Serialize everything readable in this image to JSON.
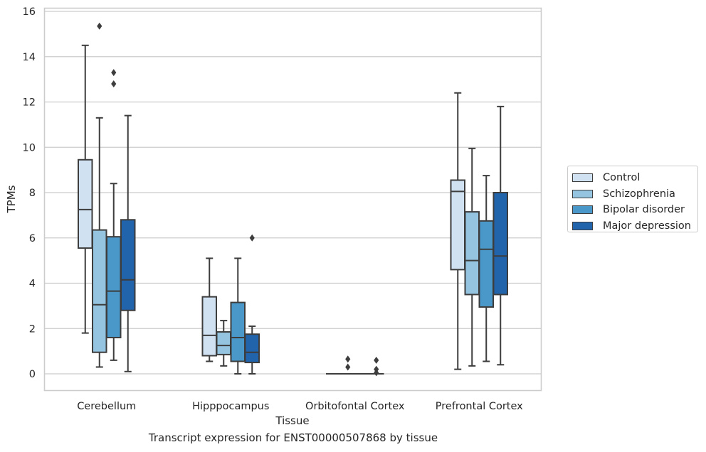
{
  "chart_data": {
    "type": "box",
    "title": "",
    "xlabel": "Tissue",
    "ylabel": "TPMs",
    "caption": "Transcript expression for ENST00000507868 by tissue",
    "ylim": [
      -0.7,
      16.2
    ],
    "yticks": [
      "0",
      "2",
      "4",
      "6",
      "8",
      "10",
      "12",
      "14",
      "16"
    ],
    "grid": "horizontal",
    "legend_position": "right",
    "categories": [
      "Cerebellum",
      "Hipppocampus",
      "Orbitofontal Cortex",
      "Prefrontal Cortex"
    ],
    "series": [
      {
        "name": "Control",
        "color": "#d0e1f2",
        "boxes": [
          {
            "whisker_low": 1.8,
            "q1": 5.55,
            "median": 7.25,
            "q3": 9.45,
            "whisker_high": 14.5,
            "outliers": []
          },
          {
            "whisker_low": 0.55,
            "q1": 0.8,
            "median": 1.7,
            "q3": 3.4,
            "whisker_high": 5.1,
            "outliers": []
          },
          {
            "whisker_low": 0.0,
            "q1": 0.0,
            "median": 0.0,
            "q3": 0.0,
            "whisker_high": 0.0,
            "outliers": []
          },
          {
            "whisker_low": 0.2,
            "q1": 4.6,
            "median": 8.05,
            "q3": 8.55,
            "whisker_high": 12.4,
            "outliers": []
          }
        ]
      },
      {
        "name": "Schizophrenia",
        "color": "#94c4df",
        "boxes": [
          {
            "whisker_low": 0.3,
            "q1": 0.95,
            "median": 3.05,
            "q3": 6.35,
            "whisker_high": 11.3,
            "outliers": [
              15.35
            ]
          },
          {
            "whisker_low": 0.35,
            "q1": 0.85,
            "median": 1.25,
            "q3": 1.85,
            "whisker_high": 2.35,
            "outliers": []
          },
          {
            "whisker_low": 0.0,
            "q1": 0.0,
            "median": 0.0,
            "q3": 0.0,
            "whisker_high": 0.0,
            "outliers": [
              0.65,
              0.3
            ]
          },
          {
            "whisker_low": 0.35,
            "q1": 3.5,
            "median": 5.0,
            "q3": 7.15,
            "whisker_high": 9.95,
            "outliers": []
          }
        ]
      },
      {
        "name": "Bipolar disorder",
        "color": "#4a98c9",
        "boxes": [
          {
            "whisker_low": 0.6,
            "q1": 1.6,
            "median": 3.65,
            "q3": 6.05,
            "whisker_high": 8.4,
            "outliers": [
              13.3,
              12.8
            ]
          },
          {
            "whisker_low": 0.0,
            "q1": 0.55,
            "median": 1.6,
            "q3": 3.15,
            "whisker_high": 5.1,
            "outliers": []
          },
          {
            "whisker_low": 0.0,
            "q1": 0.0,
            "median": 0.0,
            "q3": 0.0,
            "whisker_high": 0.0,
            "outliers": []
          },
          {
            "whisker_low": 0.55,
            "q1": 2.95,
            "median": 5.5,
            "q3": 6.75,
            "whisker_high": 8.75,
            "outliers": []
          }
        ]
      },
      {
        "name": "Major depression",
        "color": "#2164ab",
        "boxes": [
          {
            "whisker_low": 0.1,
            "q1": 2.8,
            "median": 4.15,
            "q3": 6.8,
            "whisker_high": 11.4,
            "outliers": []
          },
          {
            "whisker_low": 0.0,
            "q1": 0.5,
            "median": 0.95,
            "q3": 1.75,
            "whisker_high": 2.1,
            "outliers": [
              6.0
            ]
          },
          {
            "whisker_low": 0.0,
            "q1": 0.0,
            "median": 0.0,
            "q3": 0.0,
            "whisker_high": 0.0,
            "outliers": [
              0.6,
              0.2,
              0.05
            ]
          },
          {
            "whisker_low": 0.4,
            "q1": 3.5,
            "median": 5.2,
            "q3": 8.0,
            "whisker_high": 11.8,
            "outliers": []
          }
        ]
      }
    ]
  }
}
